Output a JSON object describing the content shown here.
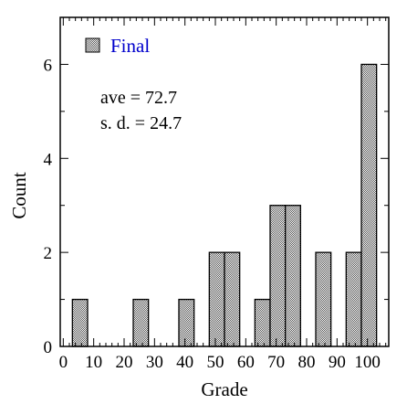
{
  "chart_data": {
    "type": "bar",
    "title": "",
    "xlabel": "Grade",
    "ylabel": "Count",
    "xlim": [
      -1,
      107
    ],
    "ylim": [
      0,
      7
    ],
    "x_ticks": [
      0,
      10,
      20,
      30,
      40,
      50,
      60,
      70,
      80,
      90,
      100
    ],
    "y_ticks": [
      0,
      2,
      4,
      6
    ],
    "bin_width": 5,
    "series": [
      {
        "name": "Final",
        "bin_starts": [
          3,
          8,
          13,
          18,
          23,
          28,
          33,
          38,
          43,
          48,
          53,
          58,
          63,
          68,
          73,
          78,
          83,
          88,
          93,
          98
        ],
        "values": [
          1,
          0,
          0,
          0,
          1,
          0,
          0,
          1,
          0,
          2,
          2,
          0,
          1,
          3,
          3,
          0,
          2,
          0,
          2,
          6
        ]
      }
    ],
    "annotations": {
      "ave": "ave = 72.7",
      "sd": "s. d. = 24.7"
    },
    "legend_position": "top-left",
    "grid": false,
    "colors": {
      "bar_fill_pattern": "#555555",
      "legend_text": "#0000cc",
      "axis": "#000000"
    }
  }
}
